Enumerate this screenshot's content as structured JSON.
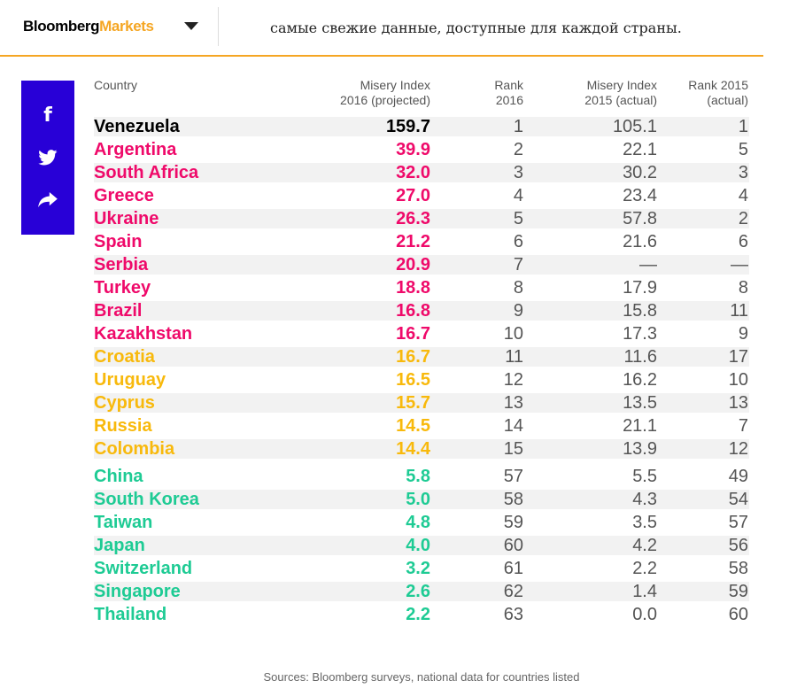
{
  "header": {
    "brand_primary": "Bloomberg",
    "brand_secondary": "Markets",
    "headline": "самые свежие данные, доступные для каждой страны."
  },
  "share_icons": [
    "facebook-icon",
    "twitter-icon",
    "share-icon"
  ],
  "colors": {
    "accent": "#f5a623",
    "share_bg": "#2800d7",
    "pink": "#ef0a6a",
    "yellow": "#f8b90c",
    "green": "#1ecb94"
  },
  "table": {
    "columns": {
      "country": "Country",
      "misery_2016_l1": "Misery Index",
      "misery_2016_l2": "2016 (projected)",
      "rank_2016_l1": "Rank",
      "rank_2016_l2": "2016",
      "misery_2015_l1": "Misery Index",
      "misery_2015_l2": "2015 (actual)",
      "rank_2015_l1": "Rank 2015",
      "rank_2015_l2": "(actual)"
    },
    "rows": [
      {
        "country": "Venezuela",
        "mi2016": "159.7",
        "rank2016": "1",
        "mi2015": "105.1",
        "rank2015": "1",
        "group": "black"
      },
      {
        "country": "Argentina",
        "mi2016": "39.9",
        "rank2016": "2",
        "mi2015": "22.1",
        "rank2015": "5",
        "group": "pink"
      },
      {
        "country": "South Africa",
        "mi2016": "32.0",
        "rank2016": "3",
        "mi2015": "30.2",
        "rank2015": "3",
        "group": "pink"
      },
      {
        "country": "Greece",
        "mi2016": "27.0",
        "rank2016": "4",
        "mi2015": "23.4",
        "rank2015": "4",
        "group": "pink"
      },
      {
        "country": "Ukraine",
        "mi2016": "26.3",
        "rank2016": "5",
        "mi2015": "57.8",
        "rank2015": "2",
        "group": "pink"
      },
      {
        "country": "Spain",
        "mi2016": "21.2",
        "rank2016": "6",
        "mi2015": "21.6",
        "rank2015": "6",
        "group": "pink"
      },
      {
        "country": "Serbia",
        "mi2016": "20.9",
        "rank2016": "7",
        "mi2015": "—",
        "rank2015": "—",
        "group": "pink"
      },
      {
        "country": "Turkey",
        "mi2016": "18.8",
        "rank2016": "8",
        "mi2015": "17.9",
        "rank2015": "8",
        "group": "pink"
      },
      {
        "country": "Brazil",
        "mi2016": "16.8",
        "rank2016": "9",
        "mi2015": "15.8",
        "rank2015": "11",
        "group": "pink"
      },
      {
        "country": "Kazakhstan",
        "mi2016": "16.7",
        "rank2016": "10",
        "mi2015": "17.3",
        "rank2015": "9",
        "group": "pink"
      },
      {
        "country": "Croatia",
        "mi2016": "16.7",
        "rank2016": "11",
        "mi2015": "11.6",
        "rank2015": "17",
        "group": "yellow"
      },
      {
        "country": "Uruguay",
        "mi2016": "16.5",
        "rank2016": "12",
        "mi2015": "16.2",
        "rank2015": "10",
        "group": "yellow"
      },
      {
        "country": "Cyprus",
        "mi2016": "15.7",
        "rank2016": "13",
        "mi2015": "13.5",
        "rank2015": "13",
        "group": "yellow"
      },
      {
        "country": "Russia",
        "mi2016": "14.5",
        "rank2016": "14",
        "mi2015": "21.1",
        "rank2015": "7",
        "group": "yellow"
      },
      {
        "country": "Colombia",
        "mi2016": "14.4",
        "rank2016": "15",
        "mi2015": "13.9",
        "rank2015": "12",
        "group": "yellow"
      },
      {
        "country": "China",
        "mi2016": "5.8",
        "rank2016": "57",
        "mi2015": "5.5",
        "rank2015": "49",
        "group": "green"
      },
      {
        "country": "South Korea",
        "mi2016": "5.0",
        "rank2016": "58",
        "mi2015": "4.3",
        "rank2015": "54",
        "group": "green"
      },
      {
        "country": "Taiwan",
        "mi2016": "4.8",
        "rank2016": "59",
        "mi2015": "3.5",
        "rank2015": "57",
        "group": "green"
      },
      {
        "country": "Japan",
        "mi2016": "4.0",
        "rank2016": "60",
        "mi2015": "4.2",
        "rank2015": "56",
        "group": "green"
      },
      {
        "country": "Switzerland",
        "mi2016": "3.2",
        "rank2016": "61",
        "mi2015": "2.2",
        "rank2015": "58",
        "group": "green"
      },
      {
        "country": "Singapore",
        "mi2016": "2.6",
        "rank2016": "62",
        "mi2015": "1.4",
        "rank2015": "59",
        "group": "green"
      },
      {
        "country": "Thailand",
        "mi2016": "2.2",
        "rank2016": "63",
        "mi2015": "0.0",
        "rank2015": "60",
        "group": "green"
      }
    ]
  },
  "source": "Sources: Bloomberg surveys, national data for countries listed"
}
